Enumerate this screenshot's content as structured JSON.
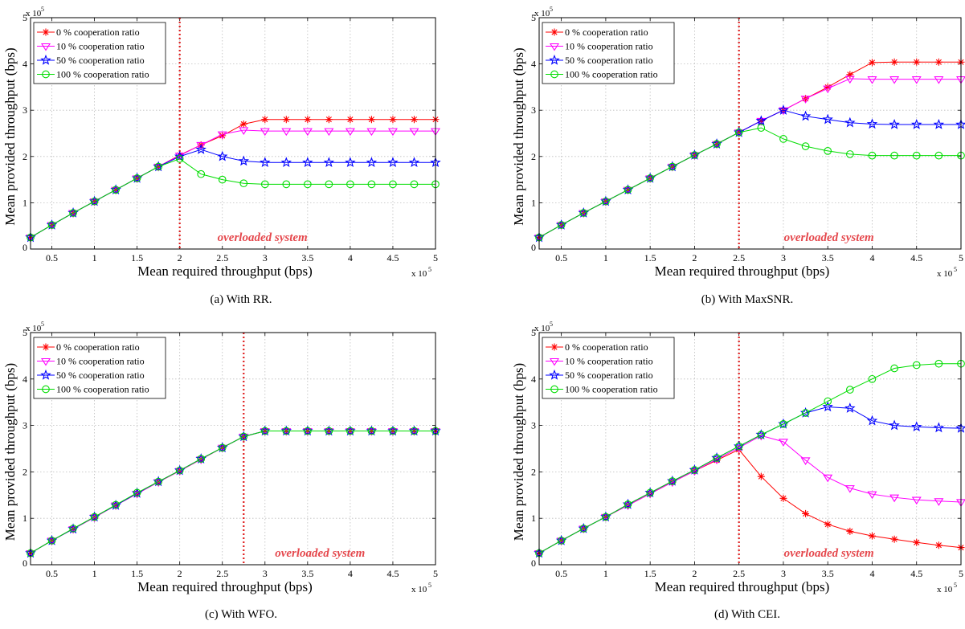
{
  "figure": {
    "captions": [
      "(a)  With RR.",
      "(b)  With MaxSNR.",
      "(c)  With WFO.",
      "(d)  With CEI."
    ]
  },
  "chart_data": [
    {
      "type": "line",
      "caption": "(a)  With RR.",
      "xlabel": "Mean required throughput (bps)",
      "ylabel": "Mean provided throughput (bps)",
      "x_multiplier": "x 10",
      "x_multiplier_exp": "5",
      "y_multiplier": "x 10",
      "y_multiplier_exp": "5",
      "xlim": [
        0.25,
        5
      ],
      "ylim": [
        0,
        5
      ],
      "xticks": [
        0.5,
        1,
        1.5,
        2,
        2.5,
        3,
        3.5,
        4,
        4.5,
        5
      ],
      "xtick_labels": [
        "0.5",
        "1",
        "1.5",
        "2",
        "2.5",
        "3",
        "3.5",
        "4",
        "4.5",
        "5"
      ],
      "yticks": [
        0,
        1,
        2,
        3,
        4,
        5
      ],
      "ytick_labels": [
        "0",
        "1",
        "2",
        "3",
        "4",
        "5"
      ],
      "grid": true,
      "legend_position": "top-left",
      "annotation": "overloaded system",
      "threshold_x": 2.0,
      "x": [
        0.25,
        0.5,
        0.75,
        1,
        1.25,
        1.5,
        1.75,
        2,
        2.25,
        2.5,
        2.75,
        3,
        3.25,
        3.5,
        3.75,
        4,
        4.25,
        4.5,
        4.75,
        5
      ],
      "series": [
        {
          "name": "0 % cooperation ratio",
          "color": "#ff0000",
          "marker": "star",
          "values": [
            0.25,
            0.52,
            0.78,
            1.03,
            1.28,
            1.53,
            1.78,
            2.03,
            2.25,
            2.45,
            2.7,
            2.8,
            2.8,
            2.8,
            2.8,
            2.8,
            2.8,
            2.8,
            2.8,
            2.8
          ]
        },
        {
          "name": "10 % cooperation ratio",
          "color": "#ff00ff",
          "marker": "triangle-down",
          "values": [
            0.25,
            0.52,
            0.78,
            1.03,
            1.28,
            1.53,
            1.78,
            2.02,
            2.25,
            2.48,
            2.57,
            2.55,
            2.55,
            2.55,
            2.55,
            2.55,
            2.55,
            2.55,
            2.55,
            2.55
          ]
        },
        {
          "name": "50 % cooperation ratio",
          "color": "#0000ff",
          "marker": "pentagram",
          "values": [
            0.25,
            0.52,
            0.78,
            1.03,
            1.28,
            1.53,
            1.78,
            2.0,
            2.15,
            2.0,
            1.9,
            1.87,
            1.87,
            1.87,
            1.87,
            1.87,
            1.87,
            1.87,
            1.87,
            1.87
          ]
        },
        {
          "name": "100 % cooperation ratio",
          "color": "#00dd00",
          "marker": "circle",
          "values": [
            0.25,
            0.52,
            0.78,
            1.03,
            1.28,
            1.53,
            1.78,
            1.95,
            1.62,
            1.5,
            1.42,
            1.4,
            1.4,
            1.4,
            1.4,
            1.4,
            1.4,
            1.4,
            1.4,
            1.4
          ]
        }
      ]
    },
    {
      "type": "line",
      "caption": "(b)  With MaxSNR.",
      "xlabel": "Mean required throughput (bps)",
      "ylabel": "Mean provided throughput (bps)",
      "x_multiplier": "x 10",
      "x_multiplier_exp": "5",
      "y_multiplier": "x 10",
      "y_multiplier_exp": "5",
      "xlim": [
        0.25,
        5
      ],
      "ylim": [
        0,
        5
      ],
      "xticks": [
        0.5,
        1,
        1.5,
        2,
        2.5,
        3,
        3.5,
        4,
        4.5,
        5
      ],
      "xtick_labels": [
        "0.5",
        "1",
        "1.5",
        "2",
        "2.5",
        "3",
        "3.5",
        "4",
        "4.5",
        "5"
      ],
      "yticks": [
        0,
        1,
        2,
        3,
        4,
        5
      ],
      "ytick_labels": [
        "0",
        "1",
        "2",
        "3",
        "4",
        "5"
      ],
      "grid": true,
      "legend_position": "top-left",
      "annotation": "overloaded system",
      "threshold_x": 2.5,
      "x": [
        0.25,
        0.5,
        0.75,
        1,
        1.25,
        1.5,
        1.75,
        2,
        2.25,
        2.5,
        2.75,
        3,
        3.25,
        3.5,
        3.75,
        4,
        4.25,
        4.5,
        4.75,
        5
      ],
      "series": [
        {
          "name": "0 % cooperation ratio",
          "color": "#ff0000",
          "marker": "star",
          "values": [
            0.25,
            0.52,
            0.78,
            1.03,
            1.28,
            1.53,
            1.78,
            2.03,
            2.27,
            2.52,
            2.77,
            3.0,
            3.25,
            3.5,
            3.77,
            4.03,
            4.04,
            4.04,
            4.04,
            4.04
          ]
        },
        {
          "name": "10 % cooperation ratio",
          "color": "#ff00ff",
          "marker": "triangle-down",
          "values": [
            0.25,
            0.52,
            0.78,
            1.03,
            1.28,
            1.53,
            1.78,
            2.03,
            2.27,
            2.52,
            2.77,
            3.0,
            3.25,
            3.47,
            3.68,
            3.67,
            3.67,
            3.67,
            3.67,
            3.67
          ]
        },
        {
          "name": "50 % cooperation ratio",
          "color": "#0000ff",
          "marker": "pentagram",
          "values": [
            0.25,
            0.52,
            0.78,
            1.03,
            1.28,
            1.53,
            1.78,
            2.03,
            2.27,
            2.52,
            2.77,
            3.0,
            2.87,
            2.8,
            2.73,
            2.7,
            2.69,
            2.69,
            2.69,
            2.69
          ]
        },
        {
          "name": "100 % cooperation ratio",
          "color": "#00dd00",
          "marker": "circle",
          "values": [
            0.25,
            0.52,
            0.78,
            1.03,
            1.28,
            1.53,
            1.78,
            2.03,
            2.27,
            2.52,
            2.62,
            2.38,
            2.22,
            2.12,
            2.05,
            2.02,
            2.02,
            2.02,
            2.02,
            2.02
          ]
        }
      ]
    },
    {
      "type": "line",
      "caption": "(c)  With WFO.",
      "xlabel": "Mean required throughput (bps)",
      "ylabel": "Mean provided throughput (bps)",
      "x_multiplier": "x 10",
      "x_multiplier_exp": "5",
      "y_multiplier": "x 10",
      "y_multiplier_exp": "5",
      "xlim": [
        0.25,
        5
      ],
      "ylim": [
        0,
        5
      ],
      "xticks": [
        0.5,
        1,
        1.5,
        2,
        2.5,
        3,
        3.5,
        4,
        4.5,
        5
      ],
      "xtick_labels": [
        "0.5",
        "1",
        "1.5",
        "2",
        "2.5",
        "3",
        "3.5",
        "4",
        "4.5",
        "5"
      ],
      "yticks": [
        0,
        1,
        2,
        3,
        4,
        5
      ],
      "ytick_labels": [
        "0",
        "1",
        "2",
        "3",
        "4",
        "5"
      ],
      "grid": true,
      "legend_position": "top-left",
      "annotation": "overloaded system",
      "threshold_x": 2.75,
      "x": [
        0.25,
        0.5,
        0.75,
        1,
        1.25,
        1.5,
        1.75,
        2,
        2.25,
        2.5,
        2.75,
        3,
        3.25,
        3.5,
        3.75,
        4,
        4.25,
        4.5,
        4.75,
        5
      ],
      "series": [
        {
          "name": "0 % cooperation ratio",
          "color": "#ff0000",
          "marker": "star",
          "values": [
            0.25,
            0.52,
            0.77,
            1.02,
            1.28,
            1.53,
            1.78,
            2.02,
            2.27,
            2.52,
            2.76,
            2.88,
            2.88,
            2.88,
            2.88,
            2.88,
            2.88,
            2.88,
            2.88,
            2.88
          ]
        },
        {
          "name": "10 % cooperation ratio",
          "color": "#ff00ff",
          "marker": "triangle-down",
          "values": [
            0.25,
            0.52,
            0.77,
            1.02,
            1.28,
            1.53,
            1.78,
            2.02,
            2.27,
            2.52,
            2.76,
            2.88,
            2.88,
            2.88,
            2.88,
            2.88,
            2.88,
            2.88,
            2.88,
            2.88
          ]
        },
        {
          "name": "50 % cooperation ratio",
          "color": "#0000ff",
          "marker": "pentagram",
          "values": [
            0.25,
            0.52,
            0.77,
            1.03,
            1.28,
            1.54,
            1.79,
            2.03,
            2.28,
            2.52,
            2.76,
            2.88,
            2.88,
            2.88,
            2.88,
            2.88,
            2.88,
            2.88,
            2.88,
            2.88
          ]
        },
        {
          "name": "100 % cooperation ratio",
          "color": "#00dd00",
          "marker": "circle",
          "values": [
            0.25,
            0.52,
            0.78,
            1.03,
            1.29,
            1.55,
            1.79,
            2.03,
            2.28,
            2.52,
            2.76,
            2.88,
            2.88,
            2.88,
            2.88,
            2.88,
            2.88,
            2.88,
            2.88,
            2.88
          ]
        }
      ]
    },
    {
      "type": "line",
      "caption": "(d)  With CEI.",
      "xlabel": "Mean required throughput (bps)",
      "ylabel": "Mean provided throughput (bps)",
      "x_multiplier": "x 10",
      "x_multiplier_exp": "5",
      "y_multiplier": "x 10",
      "y_multiplier_exp": "5",
      "xlim": [
        0.25,
        5
      ],
      "ylim": [
        0,
        5
      ],
      "xticks": [
        0.5,
        1,
        1.5,
        2,
        2.5,
        3,
        3.5,
        4,
        4.5,
        5
      ],
      "xtick_labels": [
        "0.5",
        "1",
        "1.5",
        "2",
        "2.5",
        "3",
        "3.5",
        "4",
        "4.5",
        "5"
      ],
      "yticks": [
        0,
        1,
        2,
        3,
        4,
        5
      ],
      "ytick_labels": [
        "0",
        "1",
        "2",
        "3",
        "4",
        "5"
      ],
      "grid": true,
      "legend_position": "top-left",
      "annotation": "overloaded system",
      "threshold_x": 2.5,
      "x": [
        0.25,
        0.5,
        0.75,
        1,
        1.25,
        1.5,
        1.75,
        2,
        2.25,
        2.5,
        2.75,
        3,
        3.25,
        3.5,
        3.75,
        4,
        4.25,
        4.5,
        4.75,
        5
      ],
      "series": [
        {
          "name": "0 % cooperation ratio",
          "color": "#ff0000",
          "marker": "star",
          "values": [
            0.25,
            0.52,
            0.78,
            1.03,
            1.28,
            1.53,
            1.78,
            2.02,
            2.25,
            2.48,
            1.9,
            1.43,
            1.1,
            0.87,
            0.72,
            0.62,
            0.55,
            0.48,
            0.42,
            0.37
          ]
        },
        {
          "name": "10 % cooperation ratio",
          "color": "#ff00ff",
          "marker": "triangle-down",
          "values": [
            0.25,
            0.52,
            0.78,
            1.03,
            1.28,
            1.53,
            1.78,
            2.02,
            2.27,
            2.52,
            2.78,
            2.65,
            2.25,
            1.88,
            1.65,
            1.52,
            1.45,
            1.4,
            1.37,
            1.35
          ]
        },
        {
          "name": "50 % cooperation ratio",
          "color": "#0000ff",
          "marker": "pentagram",
          "values": [
            0.25,
            0.52,
            0.78,
            1.03,
            1.3,
            1.55,
            1.8,
            2.04,
            2.3,
            2.55,
            2.8,
            3.03,
            3.27,
            3.4,
            3.37,
            3.1,
            3.0,
            2.97,
            2.95,
            2.94
          ]
        },
        {
          "name": "100 % cooperation ratio",
          "color": "#00dd00",
          "marker": "circle",
          "values": [
            0.25,
            0.52,
            0.78,
            1.03,
            1.3,
            1.55,
            1.8,
            2.04,
            2.3,
            2.55,
            2.8,
            3.03,
            3.27,
            3.52,
            3.77,
            4.0,
            4.23,
            4.3,
            4.33,
            4.33
          ]
        }
      ]
    }
  ]
}
